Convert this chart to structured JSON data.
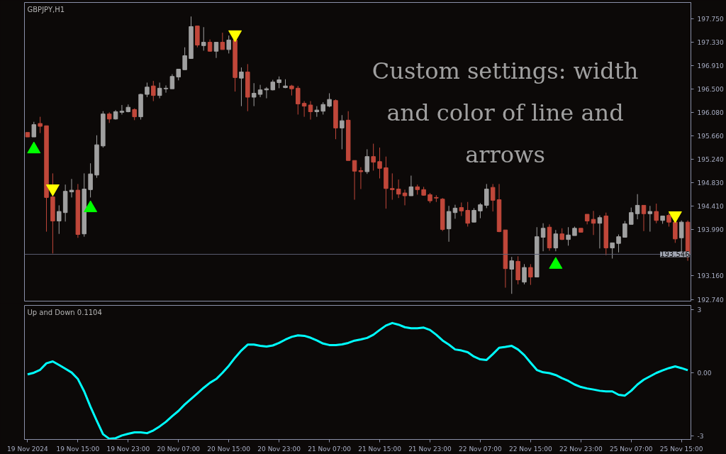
{
  "chart_data": [
    {
      "type": "candlestick",
      "title": "GBPJPY,H1",
      "categories": [
        null,
        null,
        null,
        null,
        null,
        null,
        null,
        null,
        null,
        null,
        null,
        null,
        null,
        null,
        null,
        null,
        null,
        null,
        null,
        null,
        null,
        null,
        null,
        null,
        null,
        null,
        null,
        null,
        null,
        null,
        null,
        null,
        null,
        null,
        null,
        null,
        null,
        null,
        null,
        null,
        null,
        null,
        null,
        null,
        null,
        null,
        null,
        null,
        null,
        null,
        null,
        null,
        null,
        null,
        null,
        null,
        null,
        null,
        null,
        null,
        null,
        null,
        null,
        null,
        null,
        null,
        null,
        null,
        null,
        null,
        null,
        null,
        null,
        null,
        null,
        null,
        null,
        null,
        null,
        null,
        null,
        null,
        null,
        null,
        null,
        null,
        null,
        null,
        null,
        null,
        null,
        null,
        null,
        null,
        null,
        null,
        null,
        null,
        null,
        null,
        null,
        null,
        null,
        null,
        null,
        null
      ],
      "ohlc": [
        [
          195.72,
          195.72,
          195.64,
          195.64
        ],
        [
          195.64,
          195.91,
          195.64,
          195.86
        ],
        [
          195.88,
          196.0,
          195.71,
          195.83
        ],
        [
          195.84,
          195.84,
          193.95,
          194.56
        ],
        [
          194.57,
          194.99,
          193.56,
          194.14
        ],
        [
          194.14,
          194.42,
          193.91,
          194.31
        ],
        [
          194.29,
          194.79,
          194.13,
          194.67
        ],
        [
          194.66,
          194.89,
          194.56,
          194.69
        ],
        [
          194.69,
          194.8,
          193.84,
          193.9
        ],
        [
          193.91,
          194.99,
          193.86,
          194.71
        ],
        [
          194.7,
          195.17,
          194.56,
          194.98
        ],
        [
          194.96,
          195.67,
          194.91,
          195.5
        ],
        [
          195.48,
          196.1,
          195.45,
          196.05
        ],
        [
          196.05,
          196.08,
          195.89,
          195.96
        ],
        [
          195.96,
          196.12,
          195.95,
          196.09
        ],
        [
          196.08,
          196.21,
          196.04,
          196.1
        ],
        [
          196.09,
          196.22,
          196.08,
          196.17
        ],
        [
          196.13,
          196.15,
          195.94,
          196.0
        ],
        [
          196.0,
          196.41,
          195.95,
          196.4
        ],
        [
          196.4,
          196.61,
          196.35,
          196.53
        ],
        [
          196.55,
          196.64,
          196.28,
          196.38
        ],
        [
          196.38,
          196.61,
          196.33,
          196.51
        ],
        [
          196.5,
          196.56,
          196.43,
          196.51
        ],
        [
          196.5,
          196.76,
          196.5,
          196.72
        ],
        [
          196.71,
          196.85,
          196.65,
          196.85
        ],
        [
          196.84,
          197.24,
          196.84,
          197.09
        ],
        [
          197.04,
          197.79,
          197.04,
          197.61
        ],
        [
          197.62,
          197.62,
          197.24,
          197.28
        ],
        [
          197.27,
          197.6,
          197.18,
          197.33
        ],
        [
          197.33,
          197.38,
          197.16,
          197.17
        ],
        [
          197.17,
          197.33,
          197.05,
          197.33
        ],
        [
          197.33,
          197.5,
          197.2,
          197.2
        ],
        [
          197.2,
          197.45,
          197.13,
          197.37
        ],
        [
          197.37,
          197.38,
          196.45,
          196.7
        ],
        [
          196.69,
          196.88,
          196.19,
          196.8
        ],
        [
          196.8,
          196.94,
          196.1,
          196.35
        ],
        [
          196.35,
          196.6,
          196.19,
          196.42
        ],
        [
          196.4,
          196.57,
          196.35,
          196.48
        ],
        [
          196.48,
          196.53,
          196.33,
          196.5
        ],
        [
          196.48,
          196.66,
          196.47,
          196.62
        ],
        [
          196.61,
          196.72,
          196.51,
          196.66
        ],
        [
          196.52,
          196.67,
          196.51,
          196.55
        ],
        [
          196.55,
          196.57,
          196.38,
          196.5
        ],
        [
          196.51,
          196.55,
          196.04,
          196.23
        ],
        [
          196.24,
          196.28,
          196.0,
          196.19
        ],
        [
          196.21,
          196.28,
          195.95,
          196.09
        ],
        [
          196.09,
          196.19,
          196.0,
          196.12
        ],
        [
          196.1,
          196.26,
          196.04,
          196.22
        ],
        [
          196.19,
          196.42,
          196.17,
          196.31
        ],
        [
          196.29,
          196.31,
          195.6,
          195.8
        ],
        [
          195.8,
          196.03,
          195.42,
          195.93
        ],
        [
          195.94,
          196.1,
          195.22,
          195.22
        ],
        [
          195.22,
          195.22,
          194.52,
          195.03
        ],
        [
          195.04,
          195.1,
          194.71,
          195.02
        ],
        [
          195.02,
          195.42,
          194.98,
          195.29
        ],
        [
          195.29,
          195.52,
          195.04,
          195.19
        ],
        [
          195.2,
          195.45,
          194.9,
          195.08
        ],
        [
          195.09,
          195.29,
          194.36,
          194.72
        ],
        [
          194.72,
          194.99,
          194.52,
          194.7
        ],
        [
          194.71,
          194.88,
          194.55,
          194.62
        ],
        [
          194.64,
          194.7,
          194.42,
          194.59
        ],
        [
          194.59,
          194.95,
          194.59,
          194.75
        ],
        [
          194.75,
          194.79,
          194.61,
          194.7
        ],
        [
          194.7,
          194.75,
          194.59,
          194.6
        ],
        [
          194.61,
          194.64,
          194.46,
          194.5
        ],
        [
          194.56,
          194.6,
          194.48,
          194.55
        ],
        [
          194.53,
          194.55,
          193.96,
          193.99
        ],
        [
          194.0,
          194.41,
          193.77,
          194.31
        ],
        [
          194.29,
          194.43,
          194.18,
          194.37
        ],
        [
          194.38,
          194.47,
          194.23,
          194.32
        ],
        [
          194.33,
          194.48,
          194.04,
          194.1
        ],
        [
          194.12,
          194.37,
          194.12,
          194.33
        ],
        [
          194.32,
          194.46,
          194.19,
          194.43
        ],
        [
          194.42,
          194.8,
          194.37,
          194.71
        ],
        [
          194.74,
          194.8,
          194.31,
          194.51
        ],
        [
          194.52,
          194.8,
          193.94,
          193.95
        ],
        [
          193.98,
          193.98,
          192.95,
          193.29
        ],
        [
          193.28,
          193.5,
          192.84,
          193.43
        ],
        [
          193.42,
          193.51,
          193.01,
          193.09
        ],
        [
          193.05,
          193.37,
          193.01,
          193.31
        ],
        [
          193.31,
          193.37,
          193.0,
          193.14
        ],
        [
          193.14,
          194.03,
          193.14,
          193.86
        ],
        [
          193.85,
          194.1,
          193.6,
          194.01
        ],
        [
          194.03,
          194.08,
          193.61,
          193.66
        ],
        [
          193.66,
          193.98,
          193.6,
          193.91
        ],
        [
          193.91,
          194.01,
          193.8,
          193.81
        ],
        [
          193.81,
          194.03,
          193.7,
          193.89
        ],
        [
          193.88,
          194.04,
          193.88,
          194.01
        ],
        [
          194.01,
          194.01,
          193.94,
          193.94
        ],
        [
          194.26,
          194.26,
          194.08,
          194.14
        ],
        [
          194.17,
          194.32,
          193.89,
          194.1
        ],
        [
          194.1,
          194.24,
          193.65,
          194.2
        ],
        [
          194.23,
          194.29,
          193.53,
          193.66
        ],
        [
          193.66,
          193.75,
          193.47,
          193.75
        ],
        [
          193.74,
          193.9,
          193.58,
          193.86
        ],
        [
          193.85,
          194.14,
          193.85,
          194.09
        ],
        [
          194.08,
          194.38,
          194.08,
          194.29
        ],
        [
          194.27,
          194.62,
          194.17,
          194.42
        ],
        [
          194.42,
          194.42,
          193.96,
          194.27
        ],
        [
          194.27,
          194.41,
          193.95,
          194.31
        ],
        [
          194.31,
          194.45,
          194.1,
          194.15
        ],
        [
          194.15,
          194.23,
          194.09,
          194.23
        ],
        [
          194.24,
          194.28,
          194.04,
          194.12
        ],
        [
          194.12,
          194.15,
          193.75,
          193.82
        ],
        [
          193.84,
          194.15,
          193.56,
          194.12
        ],
        [
          194.12,
          194.15,
          193.43,
          193.55
        ]
      ],
      "colors": [
        "#c0473a",
        "#a0a0a0",
        "#c0473a",
        "#c0473a",
        "#c0473a",
        "#a0a0a0",
        "#a0a0a0",
        "#a0a0a0",
        "#c0473a",
        "#a0a0a0",
        "#a0a0a0",
        "#a0a0a0",
        "#a0a0a0",
        "#c0473a",
        "#a0a0a0",
        "#a0a0a0",
        "#a0a0a0",
        "#c0473a",
        "#a0a0a0",
        "#a0a0a0",
        "#c0473a",
        "#a0a0a0",
        "#a0a0a0",
        "#a0a0a0",
        "#a0a0a0",
        "#a0a0a0",
        "#a0a0a0",
        "#c0473a",
        "#a0a0a0",
        "#c0473a",
        "#a0a0a0",
        "#c0473a",
        "#a0a0a0",
        "#c0473a",
        "#a0a0a0",
        "#c0473a",
        "#a0a0a0",
        "#a0a0a0",
        "#a0a0a0",
        "#a0a0a0",
        "#a0a0a0",
        "#a0a0a0",
        "#c0473a",
        "#c0473a",
        "#c0473a",
        "#c0473a",
        "#a0a0a0",
        "#a0a0a0",
        "#a0a0a0",
        "#c0473a",
        "#a0a0a0",
        "#c0473a",
        "#c0473a",
        "#c0473a",
        "#a0a0a0",
        "#c0473a",
        "#c0473a",
        "#c0473a",
        "#c0473a",
        "#c0473a",
        "#c0473a",
        "#a0a0a0",
        "#c0473a",
        "#c0473a",
        "#c0473a",
        "#c0473a",
        "#c0473a",
        "#a0a0a0",
        "#a0a0a0",
        "#c0473a",
        "#c0473a",
        "#a0a0a0",
        "#a0a0a0",
        "#a0a0a0",
        "#c0473a",
        "#c0473a",
        "#c0473a",
        "#a0a0a0",
        "#c0473a",
        "#a0a0a0",
        "#c0473a",
        "#a0a0a0",
        "#a0a0a0",
        "#c0473a",
        "#a0a0a0",
        "#c0473a",
        "#a0a0a0",
        "#a0a0a0",
        "#c0473a",
        "#c0473a",
        "#c0473a",
        "#a0a0a0",
        "#c0473a",
        "#a0a0a0",
        "#a0a0a0",
        "#a0a0a0",
        "#a0a0a0",
        "#a0a0a0",
        "#c0473a",
        "#a0a0a0",
        "#c0473a",
        "#a0a0a0",
        "#c0473a",
        "#c0473a",
        "#a0a0a0",
        "#c0473a"
      ],
      "series": [
        {
          "type": "scatter",
          "marker": "triangle",
          "color": "#00ff00",
          "values": [
            null,
            195.42,
            null,
            null,
            null,
            null,
            null,
            null,
            null,
            null,
            194.37,
            null,
            null,
            null,
            null,
            null,
            null,
            null,
            null,
            null,
            null,
            null,
            null,
            null,
            null,
            null,
            null,
            null,
            null,
            null,
            null,
            null,
            null,
            null,
            null,
            null,
            null,
            null,
            null,
            null,
            null,
            null,
            null,
            null,
            null,
            null,
            null,
            null,
            null,
            null,
            null,
            null,
            null,
            null,
            null,
            null,
            null,
            null,
            null,
            null,
            null,
            null,
            null,
            null,
            null,
            null,
            null,
            null,
            null,
            null,
            null,
            null,
            null,
            null,
            null,
            null,
            null,
            null,
            null,
            null,
            null,
            null,
            null,
            null,
            193.36,
            null,
            null,
            null,
            null,
            null,
            null,
            null,
            null,
            null,
            null,
            null,
            null,
            null,
            null,
            null,
            null,
            null,
            null,
            null,
            null,
            null
          ]
        },
        {
          "type": "scatter",
          "marker": "triangle",
          "color": "#ffff00",
          "values": [
            null,
            null,
            null,
            null,
            194.72,
            null,
            null,
            null,
            null,
            null,
            null,
            null,
            null,
            null,
            null,
            null,
            null,
            null,
            null,
            null,
            null,
            null,
            null,
            null,
            null,
            null,
            null,
            null,
            null,
            null,
            null,
            null,
            null,
            197.47,
            null,
            null,
            null,
            null,
            null,
            null,
            null,
            null,
            null,
            null,
            null,
            null,
            null,
            null,
            null,
            null,
            null,
            null,
            null,
            null,
            null,
            null,
            null,
            null,
            null,
            null,
            null,
            null,
            null,
            null,
            null,
            null,
            null,
            null,
            null,
            null,
            null,
            null,
            null,
            null,
            null,
            null,
            null,
            null,
            null,
            null,
            null,
            null,
            null,
            null,
            null,
            null,
            null,
            null,
            null,
            null,
            null,
            null,
            null,
            null,
            null,
            null,
            null,
            null,
            null,
            null,
            null,
            null,
            null,
            194.24,
            null,
            null
          ]
        }
      ],
      "ylim": [
        192.71,
        198.04
      ],
      "yticks": [
        {
          "value": 197.75,
          "label": "197.750"
        },
        {
          "value": 197.33,
          "label": "197.330"
        },
        {
          "value": 196.91,
          "label": "196.910"
        },
        {
          "value": 196.5,
          "label": "196.500"
        },
        {
          "value": 196.08,
          "label": "196.080"
        },
        {
          "value": 195.66,
          "label": "195.660"
        },
        {
          "value": 195.24,
          "label": "195.240"
        },
        {
          "value": 194.83,
          "label": "194.830"
        },
        {
          "value": 194.41,
          "label": "194.410"
        },
        {
          "value": 193.99,
          "label": "193.990"
        },
        {
          "value": 193.16,
          "label": "193.160"
        },
        {
          "value": 192.74,
          "label": "192.740"
        }
      ],
      "ref_lines": [
        {
          "axis": "y",
          "value": 193.546,
          "label": "193.546",
          "color": "#5a5e70"
        }
      ],
      "annotations": [
        "Custom settings: width and color of line and arrows"
      ],
      "tick_labels": "y",
      "grid": false
    },
    {
      "type": "line",
      "title": "Up and Down 0.1104",
      "categories": [
        "19 Nov 2024",
        null,
        null,
        null,
        null,
        null,
        null,
        null,
        "19 Nov 15:00",
        null,
        null,
        null,
        null,
        null,
        null,
        null,
        "19 Nov 23:00",
        null,
        null,
        null,
        null,
        null,
        null,
        null,
        "20 Nov 07:00",
        null,
        null,
        null,
        null,
        null,
        null,
        null,
        "20 Nov 15:00",
        null,
        null,
        null,
        null,
        null,
        null,
        null,
        "20 Nov 23:00",
        null,
        null,
        null,
        null,
        null,
        null,
        null,
        "21 Nov 07:00",
        null,
        null,
        null,
        null,
        null,
        null,
        null,
        "21 Nov 15:00",
        null,
        null,
        null,
        null,
        null,
        null,
        null,
        "21 Nov 23:00",
        null,
        null,
        null,
        null,
        null,
        null,
        null,
        "22 Nov 07:00",
        null,
        null,
        null,
        null,
        null,
        null,
        null,
        "22 Nov 15:00",
        null,
        null,
        null,
        null,
        null,
        null,
        null,
        "22 Nov 23:00",
        null,
        null,
        null,
        null,
        null,
        null,
        null,
        "25 Nov 07:00",
        null,
        null,
        null,
        null,
        null,
        null,
        null,
        "25 Nov 15:00",
        null
      ],
      "series": [
        {
          "color": "#00ffff",
          "values": [
            -0.08,
            0.0,
            0.14,
            0.45,
            0.54,
            0.37,
            0.19,
            0.01,
            -0.3,
            -0.89,
            -1.62,
            -2.29,
            -2.93,
            -3.15,
            -3.12,
            -2.99,
            -2.91,
            -2.84,
            -2.84,
            -2.88,
            -2.75,
            -2.56,
            -2.34,
            -2.07,
            -1.82,
            -1.51,
            -1.25,
            -0.99,
            -0.72,
            -0.48,
            -0.3,
            0.0,
            0.33,
            0.72,
            1.06,
            1.34,
            1.34,
            1.28,
            1.25,
            1.3,
            1.42,
            1.58,
            1.71,
            1.78,
            1.76,
            1.67,
            1.54,
            1.39,
            1.32,
            1.32,
            1.35,
            1.42,
            1.53,
            1.59,
            1.66,
            1.81,
            2.04,
            2.25,
            2.37,
            2.29,
            2.17,
            2.12,
            2.12,
            2.15,
            2.04,
            1.81,
            1.54,
            1.34,
            1.11,
            1.06,
            0.98,
            0.77,
            0.64,
            0.61,
            0.89,
            1.19,
            1.23,
            1.28,
            1.11,
            0.84,
            0.48,
            0.13,
            0.02,
            -0.02,
            -0.11,
            -0.26,
            -0.39,
            -0.56,
            -0.68,
            -0.75,
            -0.8,
            -0.86,
            -0.89,
            -0.89,
            -1.05,
            -1.09,
            -0.86,
            -0.56,
            -0.33,
            -0.17,
            -0.01,
            0.11,
            0.22,
            0.3,
            0.22,
            0.12
          ]
        }
      ],
      "ylim": [
        -3.18,
        3.21
      ],
      "yticks": [
        3,
        {
          "value": 0,
          "label": "0.00"
        },
        -3
      ],
      "grid": false
    }
  ]
}
